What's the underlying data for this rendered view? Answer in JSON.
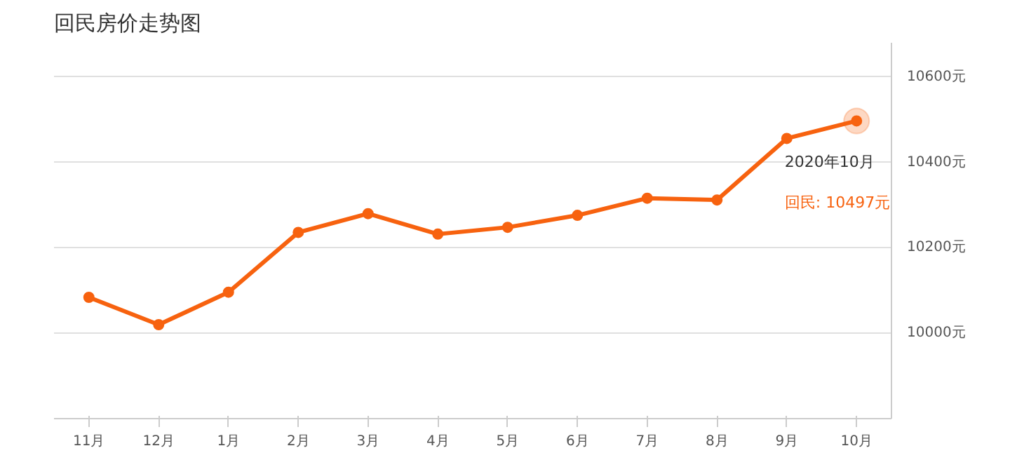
{
  "chart_data": {
    "type": "line",
    "title": "回民房价走势图",
    "categories": [
      "11月",
      "12月",
      "1月",
      "2月",
      "3月",
      "4月",
      "5月",
      "6月",
      "7月",
      "8月",
      "9月",
      "10月"
    ],
    "series": [
      {
        "color": "#f7620f",
        "values": [
          10084,
          10020,
          10096,
          10236,
          10280,
          10232,
          10248,
          10276,
          10316,
          10312,
          10456,
          10497
        ]
      }
    ],
    "ylim": [
      9800,
      10680
    ],
    "yticks": [
      {
        "value": 10000,
        "label": "10000元"
      },
      {
        "value": 10200,
        "label": "10200元"
      },
      {
        "value": 10400,
        "label": "10400元"
      },
      {
        "value": 10600,
        "label": "10600元"
      }
    ],
    "grid": "y",
    "marker": "circle",
    "line_style": "solid",
    "annotations": [
      "2020年10月",
      "回民:  10497元"
    ]
  }
}
